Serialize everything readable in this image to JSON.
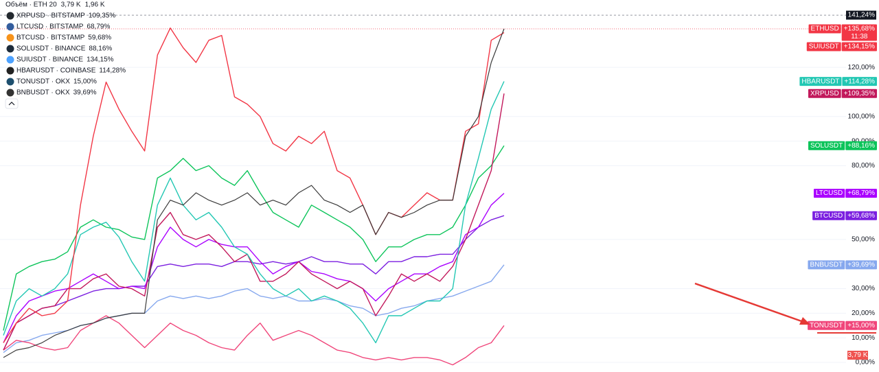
{
  "chart_data": {
    "type": "line",
    "volume_legend": {
      "title": "Объём · ETH 20",
      "values": [
        "3,79 K",
        "1,96 K"
      ],
      "colors": [
        "#f23645",
        "#2962ff"
      ]
    },
    "main_series": {
      "name": "ETHUSD",
      "color": "#3a3a3a",
      "label_color": "#f23645",
      "scale_label": "+135,68%",
      "countdown": "11:38",
      "values": [
        2,
        5,
        6,
        8,
        11,
        13,
        15,
        16,
        18,
        19,
        20,
        20,
        58,
        66,
        64,
        69,
        66,
        64,
        66,
        69,
        64,
        66,
        64,
        69,
        72,
        66,
        64,
        61,
        64,
        52,
        61,
        59,
        61,
        64,
        66,
        66,
        92,
        100,
        122,
        135.68
      ]
    },
    "categories": [
      null,
      null,
      null,
      null,
      null,
      null,
      null,
      null,
      null,
      null,
      null,
      null,
      null,
      null,
      null,
      null,
      null,
      null,
      null,
      null,
      null,
      null,
      null,
      null,
      null,
      null,
      null,
      null,
      null,
      null,
      null,
      null,
      null,
      null,
      null,
      null,
      null,
      null,
      null,
      null
    ],
    "series": [
      {
        "name": "XRPUSD",
        "legend_title": "XRPUSD · BITSTAMP",
        "legend_value": "109,35%",
        "scale_label": "+109,35%",
        "color": "#c2185b",
        "icon_color": "#23292f",
        "values": [
          5,
          16,
          19,
          22,
          23,
          30,
          30,
          34,
          36,
          31,
          30,
          27,
          55,
          61,
          52,
          50,
          52,
          47,
          41,
          44,
          33,
          33,
          36,
          41,
          36,
          33,
          30,
          33,
          30,
          19,
          27,
          36,
          33,
          36,
          33,
          39,
          50,
          64,
          78,
          109.35
        ]
      },
      {
        "name": "LTCUSD",
        "legend_title": "LTCUSD · BITSTAMP",
        "legend_value": "68,79%",
        "scale_label": "+68,79%",
        "color": "#aa00ff",
        "icon_color": "#345d9d",
        "values": [
          8,
          19,
          25,
          27,
          29,
          30,
          33,
          36,
          33,
          30,
          31,
          30,
          47,
          55,
          50,
          47,
          50,
          48,
          47,
          47,
          41,
          36,
          39,
          41,
          37,
          36,
          34,
          33,
          30,
          25,
          30,
          33,
          36,
          36,
          39,
          41,
          52,
          55,
          64,
          68.79
        ]
      },
      {
        "name": "BTCUSD",
        "legend_title": "BTCUSD · BITSTAMP",
        "legend_value": "59,68%",
        "scale_label": "+59,68%",
        "color": "#7b1fe0",
        "icon_color": "#f7931a",
        "values": [
          5,
          16,
          19,
          22,
          23,
          25,
          27,
          29,
          30,
          30,
          31,
          31,
          39,
          40,
          39,
          40,
          40,
          39,
          41,
          41,
          40,
          41,
          40,
          41,
          43,
          41,
          41,
          40,
          40,
          36,
          41,
          41,
          43,
          43,
          44,
          44,
          50,
          55,
          58,
          59.68
        ]
      },
      {
        "name": "SOLUSDT",
        "legend_title": "SOLUSDT · BINANCE",
        "legend_value": "88,16%",
        "scale_label": "+88,16%",
        "color": "#0cc45a",
        "icon_color": "#1d2b3a",
        "values": [
          13,
          36,
          39,
          41,
          42,
          45,
          55,
          58,
          55,
          54,
          51,
          50,
          75,
          78,
          83,
          78,
          80,
          75,
          72,
          78,
          69,
          61,
          58,
          55,
          64,
          61,
          58,
          55,
          50,
          41,
          47,
          47,
          50,
          52,
          52,
          55,
          64,
          75,
          80,
          88.16
        ]
      },
      {
        "name": "SUIUSDT",
        "legend_title": "SUIUSDT · BINANCE",
        "legend_value": "134,15%",
        "scale_label": "+134,15%",
        "color": "#f23645",
        "icon_color": "#4da2ff",
        "values": [
          8,
          16,
          22,
          19,
          20,
          25,
          64,
          92,
          114,
          103,
          94,
          86,
          125,
          136,
          128,
          122,
          131,
          133,
          108,
          105,
          100,
          89,
          86,
          92,
          89,
          94,
          78,
          75,
          64,
          52,
          61,
          59,
          64,
          69,
          66,
          66,
          94,
          97,
          131,
          134.15
        ]
      },
      {
        "name": "HBARUSDT",
        "legend_title": "HBARUSDT · COINBASE",
        "legend_value": "114,28%",
        "scale_label": "+114,28%",
        "color": "#22c7b3",
        "icon_color": "#222222",
        "values": [
          11,
          25,
          30,
          27,
          30,
          36,
          52,
          55,
          57,
          51,
          41,
          33,
          64,
          75,
          64,
          58,
          61,
          55,
          47,
          44,
          36,
          30,
          27,
          30,
          25,
          27,
          25,
          22,
          16,
          8,
          19,
          19,
          22,
          25,
          25,
          30,
          64,
          83,
          103,
          114.28
        ]
      },
      {
        "name": "TONUSDT",
        "legend_title": "TONUSDT · OKX",
        "legend_value": "15,00%",
        "scale_label": "+15,00%",
        "color": "#f0457a",
        "icon_color": "#1d4f6e",
        "values": [
          5,
          9,
          8,
          6,
          5,
          6,
          13,
          16,
          19,
          16,
          11,
          6,
          11,
          16,
          13,
          11,
          8,
          6,
          5,
          11,
          16,
          9,
          11,
          13,
          11,
          8,
          5,
          4,
          2,
          1,
          2,
          1,
          2,
          2,
          1,
          -1,
          2,
          6,
          8,
          15
        ]
      },
      {
        "name": "BNBUSDT",
        "legend_title": "BNBUSDT · OKX",
        "legend_value": "39,69%",
        "scale_label": "+39,69%",
        "color": "#86a8ee",
        "icon_color": "#333333",
        "values": [
          4,
          8,
          9,
          11,
          12,
          13,
          15,
          16,
          18,
          19,
          20,
          20,
          25,
          27,
          26,
          27,
          26,
          27,
          29,
          30,
          27,
          26,
          27,
          25,
          25,
          26,
          25,
          23,
          22,
          19,
          20,
          22,
          23,
          25,
          26,
          27,
          29,
          31,
          33,
          39.69
        ]
      }
    ],
    "ylim": [
      -3.9,
      147.4
    ],
    "yticks": [
      {
        "value": 0,
        "label": "0,00%"
      },
      {
        "value": 10,
        "label": "10,00%"
      },
      {
        "value": 20,
        "label": "20,00%"
      },
      {
        "value": 30,
        "label": "30,00%"
      },
      {
        "value": 50,
        "label": "50,00%"
      },
      {
        "value": 80,
        "label": "80,00%"
      },
      {
        "value": 90,
        "label": "90,00%"
      },
      {
        "value": 100,
        "label": "100,00%"
      },
      {
        "value": 120,
        "label": "120,00%"
      }
    ],
    "grid": true,
    "high_marker": {
      "value": 141.24,
      "label": "141,24%"
    },
    "volume_marker": "3,79 K"
  }
}
